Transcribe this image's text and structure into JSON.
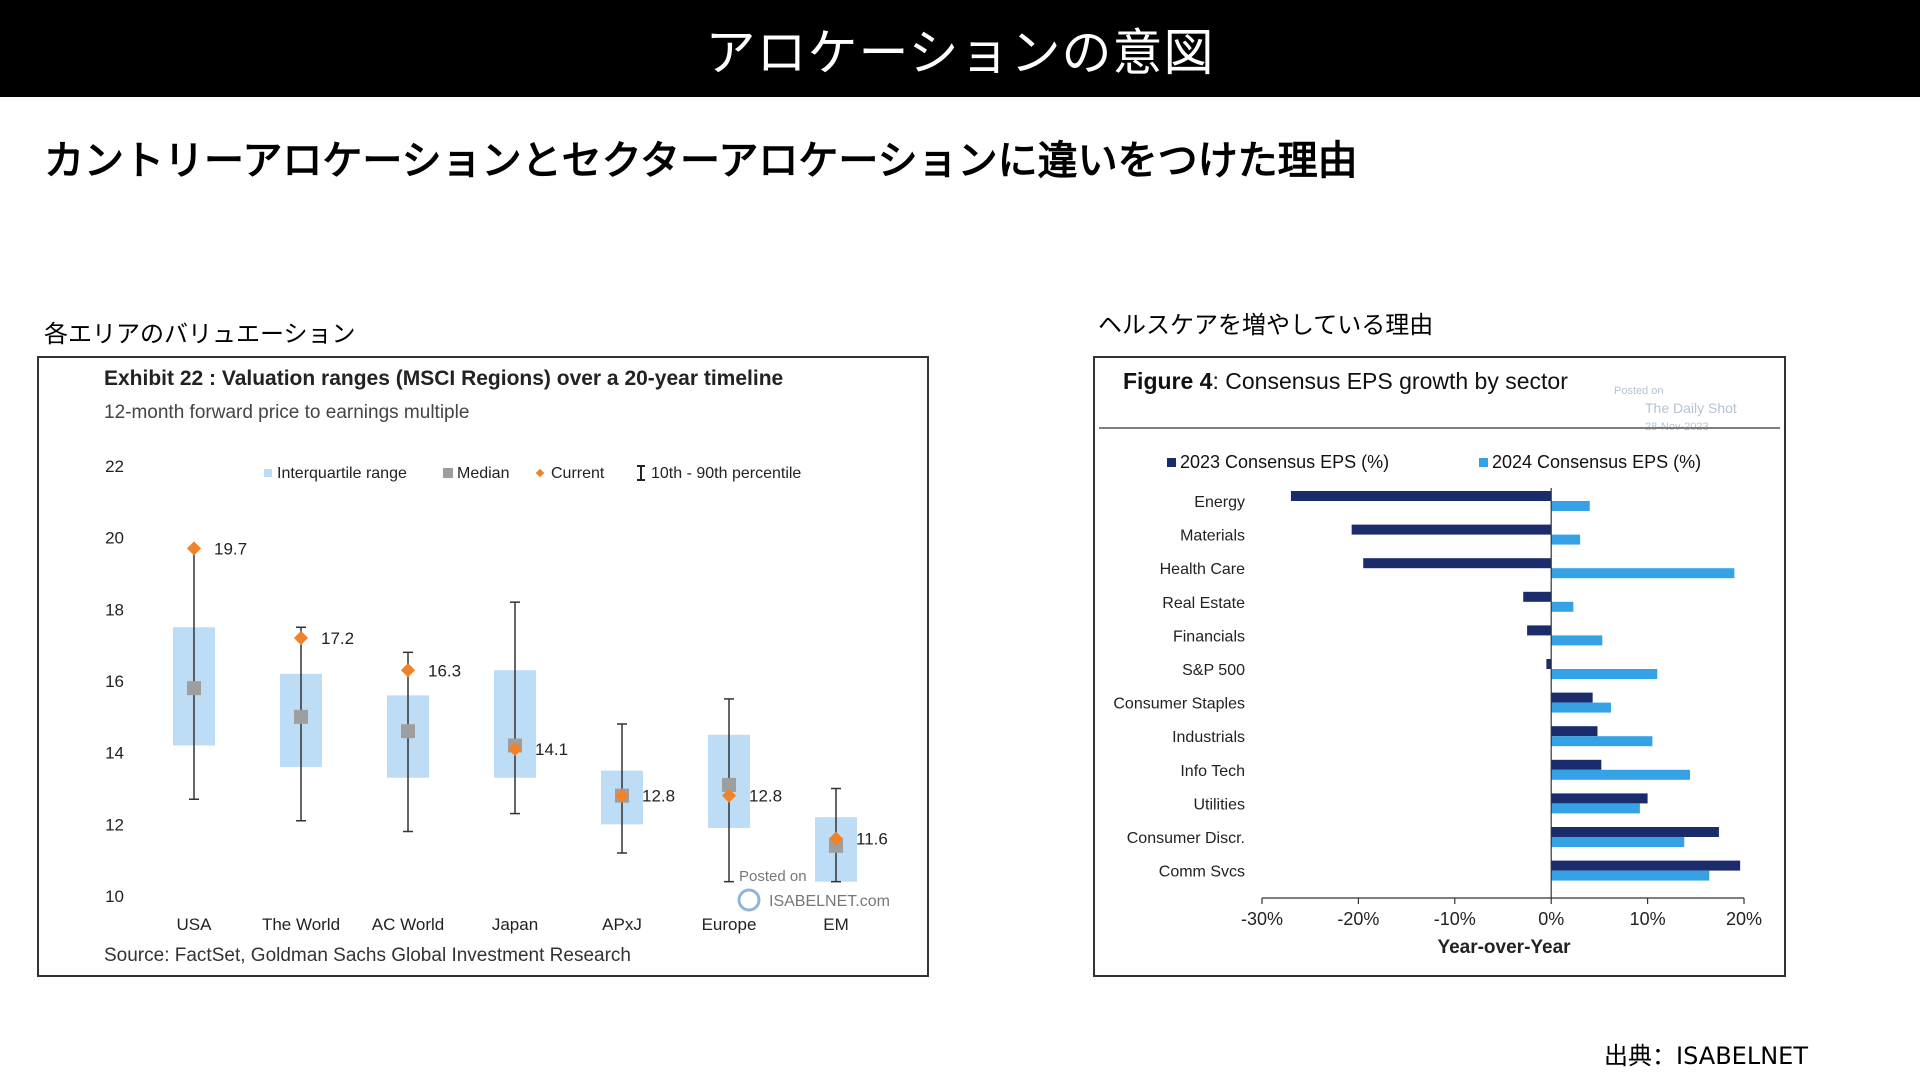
{
  "header": {
    "title": "アロケーションの意図"
  },
  "subtitle": "カントリーアロケーションとセクターアロケーションに違いをつけた理由",
  "left_panel_label": "各エリアのバリュエーション",
  "right_panel_label": "ヘルスケアを増やしている理由",
  "source_note": "出典：ISABELNET",
  "left_chart": {
    "title": "Exhibit 22 : Valuation ranges (MSCI Regions) over a 20-year timeline",
    "subtitle": "12-month forward price to earnings multiple",
    "legend": {
      "iqr": "Interquartile range",
      "median": "Median",
      "current": "Current",
      "percentile": "10th - 90th percentile"
    },
    "source": "Source: FactSet, Goldman Sachs Global Investment Research",
    "watermark_line1": "Posted on",
    "watermark_line2": "ISABELNET.com"
  },
  "right_chart": {
    "title_bold": "Figure 4",
    "title_rest": ": Consensus EPS growth by sector",
    "watermark_line1": "Posted on",
    "watermark_line2": "The Daily Shot",
    "watermark_line3": "28-Nov-2023",
    "xlabel": "Year-over-Year"
  },
  "colors": {
    "iqr_box": "#bddcf5",
    "median": "#9e9e9e",
    "current": "#f0822a",
    "eps_2023": "#1a2c6b",
    "eps_2024": "#36a2e6"
  },
  "chart_data": [
    {
      "type": "box",
      "title": "Exhibit 22 : Valuation ranges (MSCI Regions) over a 20-year timeline",
      "subtitle": "12-month forward price to earnings multiple",
      "categories": [
        "USA",
        "The World",
        "AC World",
        "Japan",
        "APxJ",
        "Europe",
        "EM"
      ],
      "p10": [
        12.7,
        12.1,
        11.8,
        12.3,
        11.2,
        10.4,
        10.4
      ],
      "q1": [
        14.2,
        13.6,
        13.3,
        13.3,
        12.0,
        11.9,
        10.4
      ],
      "median": [
        15.8,
        15.0,
        14.6,
        14.2,
        12.8,
        13.1,
        11.4
      ],
      "q3": [
        17.5,
        16.2,
        15.6,
        16.3,
        13.5,
        14.5,
        12.2
      ],
      "p90": [
        19.7,
        17.5,
        16.8,
        18.2,
        14.8,
        15.5,
        13.0
      ],
      "current": [
        19.7,
        17.2,
        16.3,
        14.1,
        12.8,
        12.8,
        11.6
      ],
      "current_labels": [
        "19.7",
        "17.2",
        "16.3",
        "14.1",
        "12.8",
        "12.8",
        "11.6"
      ],
      "ylim": [
        10,
        22
      ],
      "yticks": [
        "10",
        "12",
        "14",
        "16",
        "18",
        "20",
        "22"
      ],
      "legend_position": "top"
    },
    {
      "type": "bar",
      "orientation": "horizontal",
      "title": "Figure 4: Consensus EPS growth by sector",
      "categories": [
        "Energy",
        "Materials",
        "Health Care",
        "Real Estate",
        "Financials",
        "S&P 500",
        "Consumer Staples",
        "Industrials",
        "Info Tech",
        "Utilities",
        "Consumer Discr.",
        "Comm Svcs"
      ],
      "series": [
        {
          "name": "2023 Consensus EPS (%)",
          "values": [
            -27.0,
            -20.7,
            -19.5,
            -2.9,
            -2.5,
            -0.5,
            4.3,
            4.8,
            5.2,
            10.0,
            17.4,
            19.6
          ]
        },
        {
          "name": "2024 Consensus EPS (%)",
          "values": [
            4.0,
            3.0,
            19.0,
            2.3,
            5.3,
            11.0,
            6.2,
            10.5,
            14.4,
            9.2,
            13.8,
            16.4
          ]
        }
      ],
      "xlim": [
        -30,
        20
      ],
      "xticks": [
        "-30%",
        "-20%",
        "-10%",
        "0%",
        "10%",
        "20%"
      ],
      "xlabel": "Year-over-Year",
      "legend_position": "top"
    }
  ]
}
